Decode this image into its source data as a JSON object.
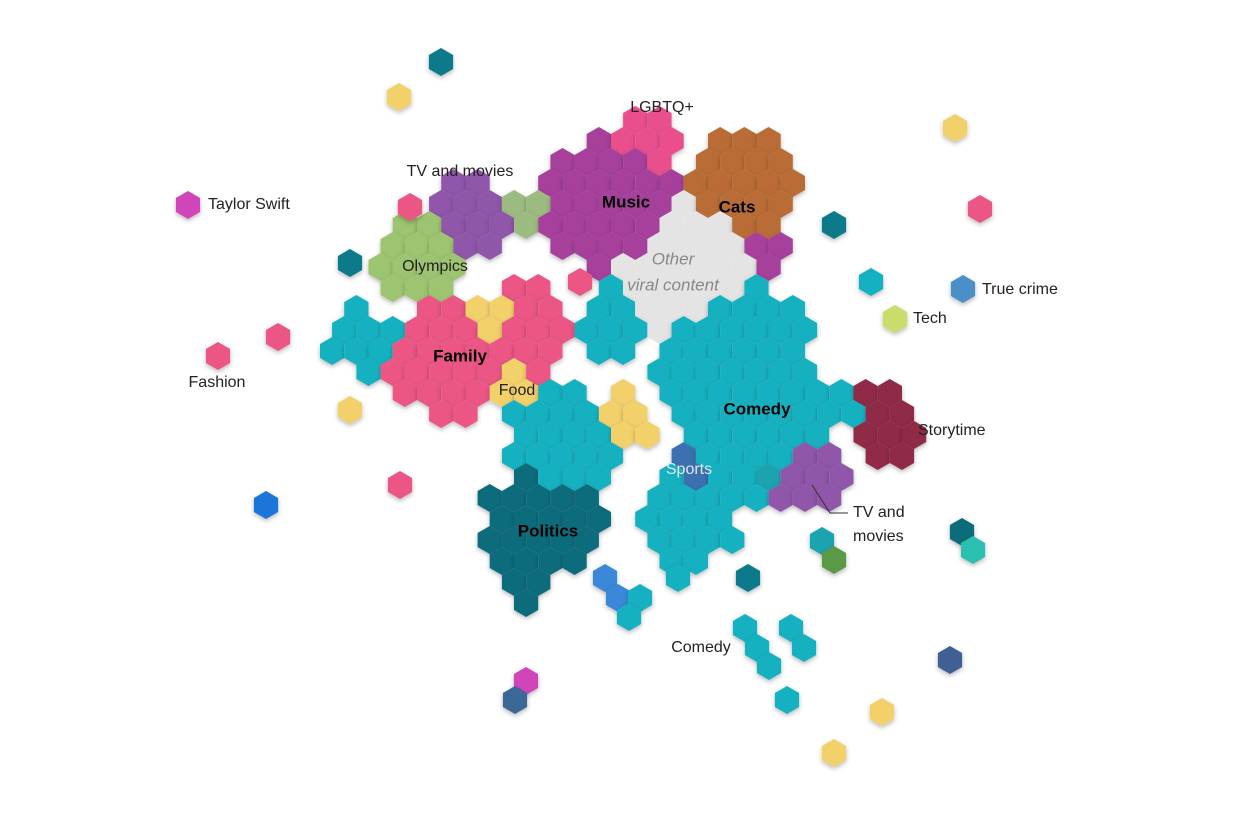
{
  "topics": [
    "LGBTQ+",
    "TV and movies",
    "Taylor Swift",
    "Olympics",
    "True crime",
    "Tech",
    "Fashion",
    "Food",
    "Storytime",
    "Sports",
    "Comedy"
  ],
  "topic_wrapped": [
    "TV and",
    "movies"
  ],
  "categories": [
    "Music",
    "Cats",
    "Family",
    "Comedy",
    "Politics"
  ],
  "note": [
    "Other",
    "viral content"
  ]
}
